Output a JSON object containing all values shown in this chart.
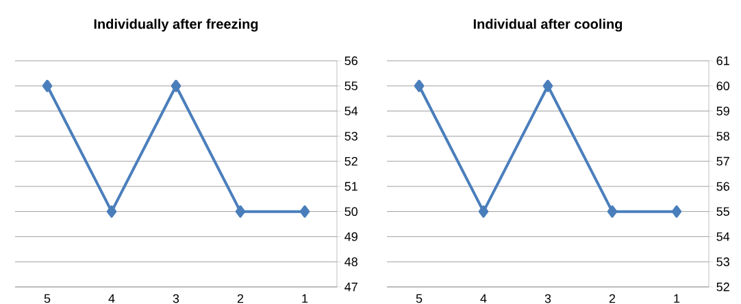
{
  "chart_data": [
    {
      "type": "line",
      "title": "Individually after freezing",
      "categories": [
        "5",
        "4",
        "3",
        "2",
        "1"
      ],
      "series": [
        {
          "color": "#4a7ebb",
          "values": [
            55,
            50,
            55,
            50,
            50
          ]
        }
      ],
      "ylim": [
        47,
        56
      ],
      "yticks": [
        47,
        48,
        49,
        50,
        51,
        52,
        53,
        54,
        55,
        56
      ],
      "grid": "y",
      "marker": "diamond",
      "line_style": "solid"
    },
    {
      "type": "line",
      "title": "Individual after cooling",
      "categories": [
        "5",
        "4",
        "3",
        "2",
        "1"
      ],
      "series": [
        {
          "color": "#4a7ebb",
          "values": [
            60,
            55,
            60,
            55,
            55
          ]
        }
      ],
      "ylim": [
        52,
        61
      ],
      "yticks": [
        52,
        53,
        54,
        55,
        56,
        57,
        58,
        59,
        60,
        61
      ],
      "grid": "y",
      "marker": "diamond",
      "line_style": "solid"
    }
  ]
}
